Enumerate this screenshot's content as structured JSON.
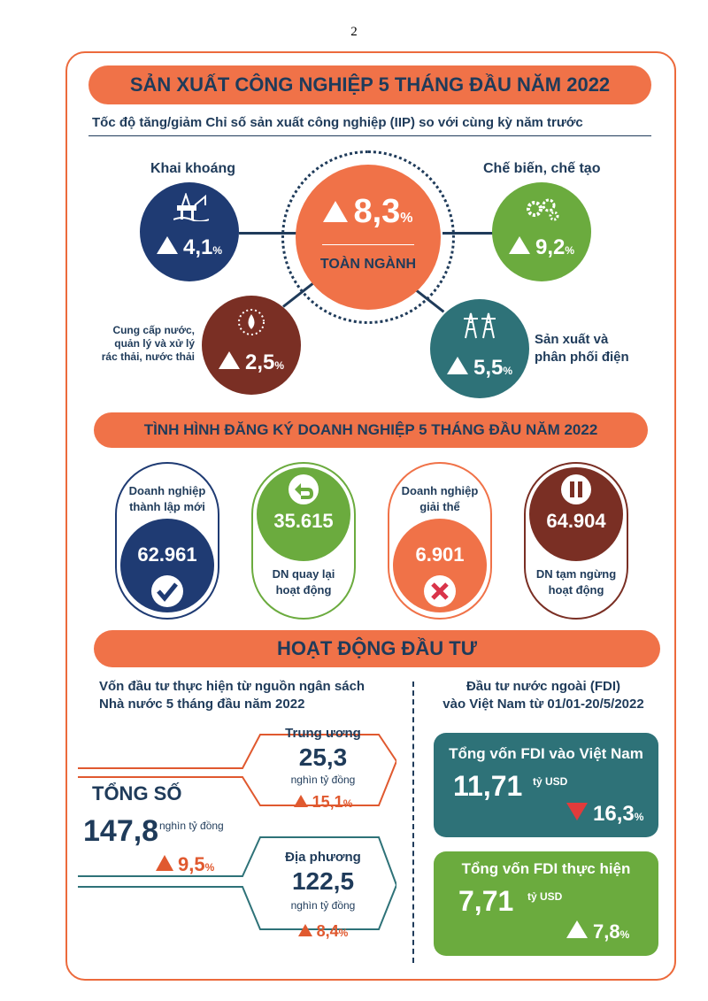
{
  "page_number": "2",
  "section1": {
    "title": "SẢN XUẤT CÔNG NGHIỆP 5 THÁNG ĐẦU NĂM 2022",
    "subtitle": "Tốc độ tăng/giảm Chỉ số sản xuất công nghiệp (IIP) so với cùng kỳ năm trước",
    "center": {
      "value": "8,3",
      "unit": "%",
      "label": "TOÀN NGÀNH"
    },
    "mining": {
      "label": "Khai khoáng",
      "value": "4,1",
      "unit": "%",
      "icon": "oil-rig-icon"
    },
    "manufacturing": {
      "label": "Chế biến, chế tạo",
      "value": "9,2",
      "unit": "%",
      "icon": "gears-icon"
    },
    "water": {
      "label_lines": [
        "Cung cấp nước,",
        "quản lý và xử lý",
        "rác thải, nước thải"
      ],
      "value": "2,5",
      "unit": "%",
      "icon": "water-drop-icon"
    },
    "electricity": {
      "label_lines": [
        "Sản xuất và",
        "phân phối điện"
      ],
      "value": "5,5",
      "unit": "%",
      "icon": "power-tower-icon"
    },
    "colors": {
      "center": "#f07248",
      "mining": "#1f3b73",
      "manufacturing": "#6bab3e",
      "water": "#7a2f24",
      "electricity": "#2e7278"
    }
  },
  "section2": {
    "title": "TÌNH HÌNH ĐĂNG KÝ DOANH NGHIỆP 5 THÁNG ĐẦU NĂM 2022",
    "new": {
      "label_lines": [
        "Doanh nghiệp",
        "thành lập mới"
      ],
      "value": "62.961",
      "icon": "check-icon"
    },
    "returned": {
      "label_lines": [
        "DN quay lại",
        "hoạt động"
      ],
      "value": "35.615",
      "icon": "return-arrow-icon"
    },
    "dissolved": {
      "label_lines": [
        "Doanh nghiệp",
        "giải thể"
      ],
      "value": "6.901",
      "icon": "cross-icon"
    },
    "suspended": {
      "label_lines": [
        "DN tạm ngừng",
        "hoạt động"
      ],
      "value": "64.904",
      "icon": "pause-icon"
    }
  },
  "section3": {
    "title": "HOẠT ĐỘNG ĐẦU TƯ",
    "budget": {
      "heading_lines": [
        "Vốn đầu tư thực hiện từ nguồn ngân sách",
        "Nhà nước 5 tháng đầu năm 2022"
      ],
      "total_label": "TỔNG SỐ",
      "total_value": "147,8",
      "total_unit": "nghìn tỷ đồng",
      "total_growth": "9,5",
      "central": {
        "label": "Trung ương",
        "value": "25,3",
        "unit": "nghìn tỷ đồng",
        "growth": "15,1"
      },
      "local": {
        "label": "Địa phương",
        "value": "122,5",
        "unit": "nghìn tỷ đồng",
        "growth": "8,4"
      },
      "pct": "%"
    },
    "fdi": {
      "heading_lines": [
        "Đầu tư nước ngoài (FDI)",
        "vào Việt Nam từ 01/01-20/5/2022"
      ],
      "registered": {
        "title": "Tổng vốn FDI vào Việt Nam",
        "value": "11,71",
        "unit": "tỷ USD",
        "change": "16,3",
        "direction": "down",
        "color": "#2e7278"
      },
      "disbursed": {
        "title": "Tổng vốn FDI thực hiện",
        "value": "7,71",
        "unit": "tỷ USD",
        "change": "7,8",
        "direction": "up",
        "color": "#6bab3e"
      },
      "pct": "%"
    }
  }
}
